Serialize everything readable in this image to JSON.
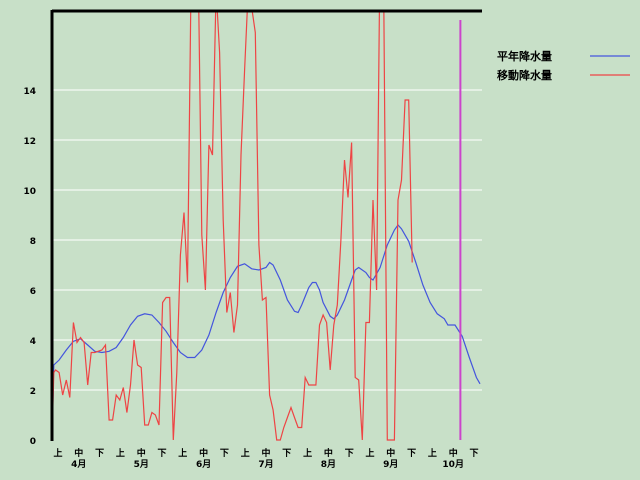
{
  "chart_data": {
    "type": "line",
    "ylim": [
      0,
      17
    ],
    "y_ticks": [
      "0",
      "2",
      "4",
      "6",
      "8",
      "10",
      "12",
      "14"
    ],
    "x_period_labels": [
      "上",
      "中",
      "下",
      "上",
      "中",
      "下",
      "上",
      "中",
      "下",
      "上",
      "中",
      "下",
      "上",
      "中",
      "下",
      "上",
      "中",
      "下",
      "上",
      "中",
      "下"
    ],
    "x_month_labels": [
      "4月",
      "5月",
      "6月",
      "7月",
      "8月",
      "9月",
      "10月"
    ],
    "grid": true,
    "legend_position": "top-right",
    "colors": {
      "normal": "#4455dd",
      "moving": "#ee4444",
      "marker": "#cc44cc",
      "gridline": "#ffffff",
      "frame": "#000000"
    },
    "series": [
      {
        "name": "平年降水量",
        "points": [
          [
            0,
            0
          ],
          [
            0.5,
            3
          ],
          [
            2,
            3.2
          ],
          [
            4,
            3.6
          ],
          [
            6,
            3.95
          ],
          [
            8,
            4.05
          ],
          [
            10,
            3.8
          ],
          [
            12,
            3.55
          ],
          [
            14,
            3.5
          ],
          [
            16,
            3.55
          ],
          [
            18,
            3.7
          ],
          [
            20,
            4.1
          ],
          [
            22,
            4.6
          ],
          [
            24,
            4.95
          ],
          [
            26,
            5.05
          ],
          [
            28,
            5
          ],
          [
            30,
            4.7
          ],
          [
            32,
            4.35
          ],
          [
            34,
            3.9
          ],
          [
            36,
            3.5
          ],
          [
            38,
            3.3
          ],
          [
            40,
            3.3
          ],
          [
            42,
            3.6
          ],
          [
            44,
            4.2
          ],
          [
            46,
            5.1
          ],
          [
            48,
            5.9
          ],
          [
            50,
            6.5
          ],
          [
            52,
            6.95
          ],
          [
            54,
            7.05
          ],
          [
            56,
            6.85
          ],
          [
            58,
            6.8
          ],
          [
            60,
            6.9
          ],
          [
            61,
            7.1
          ],
          [
            62,
            7
          ],
          [
            64,
            6.4
          ],
          [
            66,
            5.6
          ],
          [
            68,
            5.15
          ],
          [
            69,
            5.1
          ],
          [
            70,
            5.4
          ],
          [
            72,
            6.1
          ],
          [
            73,
            6.3
          ],
          [
            74,
            6.3
          ],
          [
            75,
            6
          ],
          [
            76,
            5.5
          ],
          [
            78,
            4.95
          ],
          [
            79,
            4.85
          ],
          [
            80,
            5
          ],
          [
            82,
            5.6
          ],
          [
            84,
            6.4
          ],
          [
            85,
            6.8
          ],
          [
            86,
            6.9
          ],
          [
            88,
            6.7
          ],
          [
            89,
            6.5
          ],
          [
            90,
            6.4
          ],
          [
            92,
            6.9
          ],
          [
            94,
            7.8
          ],
          [
            96,
            8.4
          ],
          [
            97,
            8.6
          ],
          [
            98,
            8.45
          ],
          [
            100,
            7.95
          ],
          [
            102,
            7.1
          ],
          [
            104,
            6.2
          ],
          [
            106,
            5.5
          ],
          [
            108,
            5.05
          ],
          [
            110,
            4.85
          ],
          [
            111,
            4.6
          ],
          [
            113,
            4.6
          ],
          [
            115,
            4.15
          ],
          [
            117,
            3.3
          ],
          [
            119,
            2.5
          ],
          [
            120,
            2.25
          ]
        ]
      },
      {
        "name": "移動降水量",
        "points": [
          [
            0,
            0
          ],
          [
            0.5,
            2.7
          ],
          [
            1,
            2.8
          ],
          [
            2,
            2.7
          ],
          [
            3,
            1.8
          ],
          [
            4,
            2.4
          ],
          [
            5,
            1.7
          ],
          [
            6,
            4.7
          ],
          [
            7,
            3.9
          ],
          [
            8,
            4.1
          ],
          [
            9,
            3.9
          ],
          [
            10,
            2.2
          ],
          [
            11,
            3.5
          ],
          [
            12,
            3.5
          ],
          [
            14,
            3.6
          ],
          [
            15,
            3.8
          ],
          [
            16,
            0.8
          ],
          [
            17,
            0.8
          ],
          [
            18,
            1.8
          ],
          [
            19,
            1.6
          ],
          [
            20,
            2.1
          ],
          [
            21,
            1.1
          ],
          [
            22,
            2.2
          ],
          [
            23,
            4
          ],
          [
            24,
            3
          ],
          [
            25,
            2.9
          ],
          [
            26,
            0.6
          ],
          [
            27,
            0.6
          ],
          [
            28,
            1.1
          ],
          [
            29,
            1
          ],
          [
            30,
            0.6
          ],
          [
            31,
            5.5
          ],
          [
            32,
            5.7
          ],
          [
            33,
            5.7
          ],
          [
            34,
            0
          ],
          [
            35,
            2.7
          ],
          [
            36,
            7.4
          ],
          [
            37,
            9.1
          ],
          [
            38,
            6.3
          ],
          [
            39,
            18.5
          ],
          [
            40,
            17.8
          ],
          [
            41,
            19
          ],
          [
            42,
            8.2
          ],
          [
            43,
            6
          ],
          [
            44,
            11.8
          ],
          [
            45,
            11.4
          ],
          [
            46,
            18
          ],
          [
            47,
            15.5
          ],
          [
            48,
            8.8
          ],
          [
            49,
            5.1
          ],
          [
            50,
            5.9
          ],
          [
            51,
            4.3
          ],
          [
            52,
            5.4
          ],
          [
            53,
            11.4
          ],
          [
            54,
            14.8
          ],
          [
            55,
            18
          ],
          [
            56,
            17.3
          ],
          [
            57,
            16.3
          ],
          [
            58,
            7.8
          ],
          [
            59,
            5.6
          ],
          [
            60,
            5.7
          ],
          [
            61,
            1.8
          ],
          [
            62,
            1.2
          ],
          [
            63,
            0
          ],
          [
            64,
            0
          ],
          [
            65,
            0.5
          ],
          [
            66,
            0.9
          ],
          [
            67,
            1.3
          ],
          [
            68,
            0.9
          ],
          [
            69,
            0.5
          ],
          [
            70,
            0.5
          ],
          [
            71,
            2.5
          ],
          [
            72,
            2.2
          ],
          [
            73,
            2.2
          ],
          [
            74,
            2.2
          ],
          [
            75,
            4.6
          ],
          [
            76,
            5
          ],
          [
            77,
            4.7
          ],
          [
            78,
            2.8
          ],
          [
            79,
            4.6
          ],
          [
            80,
            5.4
          ],
          [
            81,
            8
          ],
          [
            82,
            11.2
          ],
          [
            83,
            9.7
          ],
          [
            84,
            11.9
          ],
          [
            85,
            2.5
          ],
          [
            86,
            2.4
          ],
          [
            87,
            0
          ],
          [
            88,
            4.7
          ],
          [
            89,
            4.7
          ],
          [
            90,
            9.6
          ],
          [
            91,
            6
          ],
          [
            92,
            20
          ],
          [
            93,
            18
          ],
          [
            94,
            0
          ],
          [
            96,
            0
          ],
          [
            97,
            9.6
          ],
          [
            98,
            10.4
          ],
          [
            99,
            13.6
          ],
          [
            100,
            13.6
          ],
          [
            101,
            7.1
          ]
        ]
      }
    ],
    "marker_x": 114.5
  }
}
